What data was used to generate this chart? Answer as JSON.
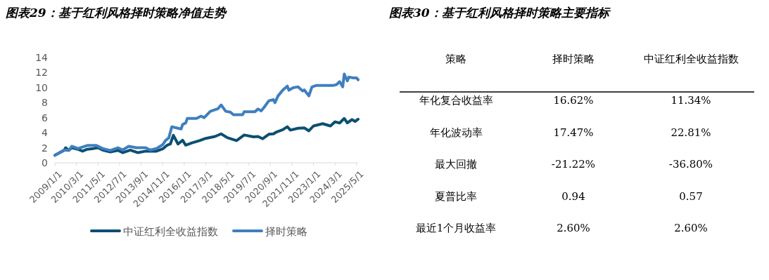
{
  "chart_data": [
    {
      "type": "line",
      "title": "图表29：基于红利风格择时策略净值走势",
      "xlim": [
        "2009-01",
        "2025-06"
      ],
      "ylim": [
        0,
        14
      ],
      "yticks": [
        0,
        2,
        4,
        6,
        8,
        10,
        12,
        14
      ],
      "xticks": [
        {
          "value": "2009-01",
          "label": "2009/1/1"
        },
        {
          "value": "2010-03",
          "label": "2010/3/1"
        },
        {
          "value": "2011-05",
          "label": "2011/5/1"
        },
        {
          "value": "2012-07",
          "label": "2012/7/1"
        },
        {
          "value": "2013-09",
          "label": "2013/9/1"
        },
        {
          "value": "2014-11",
          "label": "2014/11/1"
        },
        {
          "value": "2016-01",
          "label": "2016/1/1"
        },
        {
          "value": "2017-03",
          "label": "2017/3/1"
        },
        {
          "value": "2018-05",
          "label": "2018/5/1"
        },
        {
          "value": "2019-07",
          "label": "2019/7/1"
        },
        {
          "value": "2020-09",
          "label": "2020/9/1"
        },
        {
          "value": "2021-11",
          "label": "2021/11/1"
        },
        {
          "value": "2023-01",
          "label": "2023/1/1"
        },
        {
          "value": "2024-03",
          "label": "2024/3/1"
        },
        {
          "value": "2025-05",
          "label": "2025/5/1"
        }
      ],
      "grid": false,
      "legend": "bottom",
      "marker": "none",
      "line_style": "solid",
      "series": [
        {
          "name": "中证红利全收益指数",
          "color": "#0b4f71",
          "x": [
            "2009-01",
            "2009-07",
            "2009-08",
            "2009-10",
            "2009-12",
            "2010-04",
            "2010-07",
            "2010-10",
            "2011-02",
            "2011-05",
            "2011-08",
            "2012-01",
            "2012-06",
            "2012-09",
            "2013-02",
            "2013-07",
            "2013-12",
            "2014-07",
            "2014-11",
            "2015-02",
            "2015-04",
            "2015-06",
            "2015-09",
            "2015-12",
            "2016-02",
            "2016-06",
            "2016-11",
            "2017-03",
            "2017-09",
            "2018-01",
            "2018-05",
            "2018-11",
            "2019-04",
            "2019-10",
            "2020-01",
            "2020-04",
            "2020-08",
            "2020-11",
            "2021-01",
            "2021-05",
            "2021-08",
            "2021-10",
            "2022-03",
            "2022-07",
            "2022-10",
            "2023-01",
            "2023-07",
            "2023-12",
            "2024-03",
            "2024-06",
            "2024-09",
            "2024-11",
            "2025-02",
            "2025-04",
            "2025-06"
          ],
          "values": [
            1.0,
            1.65,
            2.0,
            1.65,
            2.0,
            1.8,
            1.55,
            1.8,
            1.9,
            2.0,
            1.7,
            1.45,
            1.65,
            1.35,
            1.7,
            1.35,
            1.55,
            1.55,
            1.85,
            2.35,
            2.5,
            3.65,
            2.5,
            3.0,
            2.35,
            2.65,
            2.95,
            3.25,
            3.5,
            3.85,
            3.35,
            2.95,
            3.7,
            3.45,
            3.5,
            3.2,
            3.8,
            3.85,
            4.1,
            4.4,
            4.8,
            4.35,
            4.6,
            4.65,
            4.25,
            4.9,
            5.2,
            4.9,
            5.45,
            5.3,
            5.9,
            5.3,
            5.75,
            5.5,
            5.8
          ]
        },
        {
          "name": "择时策略",
          "color": "#3f7fbf",
          "x": [
            "2009-01",
            "2009-07",
            "2009-10",
            "2009-12",
            "2010-04",
            "2010-10",
            "2011-04",
            "2011-08",
            "2012-01",
            "2012-06",
            "2012-09",
            "2013-01",
            "2013-06",
            "2013-12",
            "2014-03",
            "2014-07",
            "2014-11",
            "2015-01",
            "2015-03",
            "2015-05",
            "2015-09",
            "2015-11",
            "2015-12",
            "2016-02",
            "2016-03",
            "2016-09",
            "2016-12",
            "2017-02",
            "2017-06",
            "2017-11",
            "2018-01",
            "2018-04",
            "2018-07",
            "2018-09",
            "2019-03",
            "2019-04",
            "2019-11",
            "2020-01",
            "2020-03",
            "2020-05",
            "2020-08",
            "2020-11",
            "2020-12",
            "2021-02",
            "2021-05",
            "2021-08",
            "2021-09",
            "2021-12",
            "2022-03",
            "2022-06",
            "2022-07",
            "2022-10",
            "2022-12",
            "2023-03",
            "2024-02",
            "2024-04",
            "2024-06",
            "2024-08",
            "2024-09",
            "2024-11",
            "2024-12",
            "2025-03",
            "2025-05",
            "2025-06"
          ],
          "values": [
            1.0,
            1.7,
            1.65,
            2.2,
            1.9,
            2.3,
            2.3,
            1.9,
            1.65,
            2.0,
            1.7,
            2.2,
            2.0,
            2.0,
            1.7,
            1.9,
            2.4,
            3.0,
            3.3,
            4.8,
            4.6,
            4.5,
            5.1,
            5.3,
            5.9,
            5.9,
            6.2,
            6.0,
            6.85,
            7.2,
            7.7,
            6.85,
            6.75,
            6.4,
            6.4,
            6.8,
            6.8,
            7.15,
            6.9,
            7.4,
            8.25,
            8.4,
            8.0,
            8.9,
            9.65,
            10.2,
            9.65,
            10.0,
            10.1,
            9.55,
            9.7,
            8.9,
            10.1,
            10.3,
            10.3,
            10.4,
            10.8,
            10.1,
            11.8,
            10.9,
            11.4,
            11.3,
            11.3,
            11.05
          ]
        }
      ]
    },
    {
      "type": "other",
      "title": "图表30：基于红利风格择时策略主要指标",
      "ylabel": "策略",
      "categories": [
        "择时策略",
        "中证红利全收益指数"
      ],
      "y_categories": [
        "年化复合收益率",
        "年化波动率",
        "最大回撤",
        "夏普比率",
        "最近1个月收益率"
      ],
      "cell_labels": [
        [
          "16.62%",
          "11.34%"
        ],
        [
          "17.47%",
          "22.81%"
        ],
        [
          "-21.22%",
          "-36.80%"
        ],
        [
          "0.94",
          "0.57"
        ],
        [
          "2.60%",
          "2.60%"
        ]
      ]
    }
  ]
}
